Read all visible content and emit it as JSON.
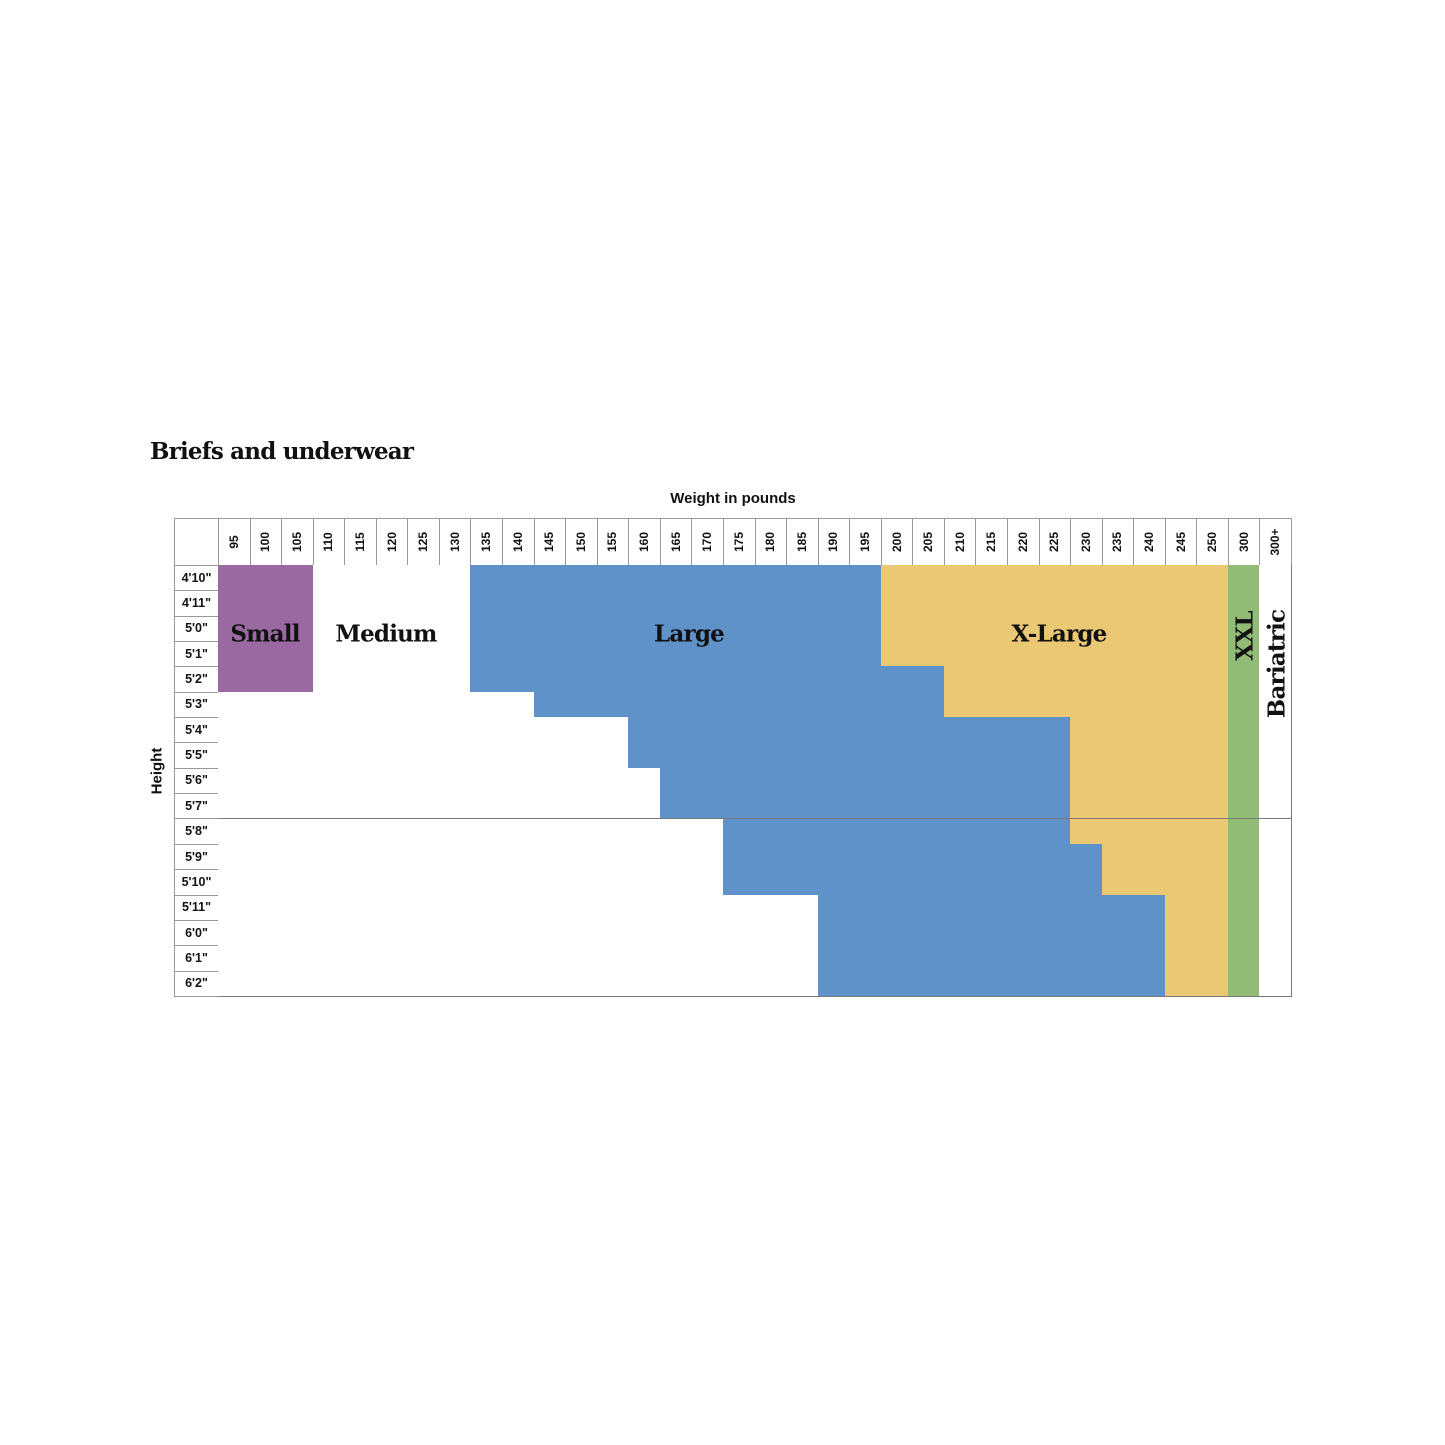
{
  "chart_data": {
    "type": "heatmap",
    "title": "Briefs and underwear",
    "xlabel": "Weight in pounds",
    "ylabel": "Height",
    "x": [
      "95",
      "100",
      "105",
      "110",
      "115",
      "120",
      "125",
      "130",
      "135",
      "140",
      "145",
      "150",
      "155",
      "160",
      "165",
      "170",
      "175",
      "180",
      "185",
      "190",
      "195",
      "200",
      "205",
      "210",
      "215",
      "220",
      "225",
      "230",
      "235",
      "240",
      "245",
      "250",
      "300",
      "300+"
    ],
    "y": [
      "4'10\"",
      "4'11\"",
      "5'0\"",
      "5'1\"",
      "5'2\"",
      "5'3\"",
      "5'4\"",
      "5'5\"",
      "5'6\"",
      "5'7\"",
      "5'8\"",
      "5'9\"",
      "5'10\"",
      "5'11\"",
      "6'0\"",
      "6'1\"",
      "6'2\""
    ],
    "sizes": [
      {
        "name": "Small",
        "color": "#9b69a2"
      },
      {
        "name": "Medium",
        "color": "#ffffff"
      },
      {
        "name": "Large",
        "color": "#5f92c8"
      },
      {
        "name": "X-Large",
        "color": "#ebc873"
      },
      {
        "name": "XXL",
        "color": "#92bb76"
      },
      {
        "name": "Bariatric",
        "color": "#ffffff"
      }
    ],
    "rows": [
      {
        "height": "4'10\"",
        "bands": [
          {
            "size": "Small",
            "from": "95",
            "to": "105"
          },
          {
            "size": "Large",
            "from": "135",
            "to": "195"
          },
          {
            "size": "X-Large",
            "from": "200",
            "to": "250"
          },
          {
            "size": "XXL",
            "from": "300",
            "to": "300"
          }
        ]
      },
      {
        "height": "4'11\"",
        "bands": [
          {
            "size": "Small",
            "from": "95",
            "to": "105"
          },
          {
            "size": "Large",
            "from": "135",
            "to": "195"
          },
          {
            "size": "X-Large",
            "from": "200",
            "to": "250"
          },
          {
            "size": "XXL",
            "from": "300",
            "to": "300"
          }
        ]
      },
      {
        "height": "5'0\"",
        "bands": [
          {
            "size": "Small",
            "from": "95",
            "to": "105"
          },
          {
            "size": "Large",
            "from": "135",
            "to": "195"
          },
          {
            "size": "X-Large",
            "from": "200",
            "to": "250"
          },
          {
            "size": "XXL",
            "from": "300",
            "to": "300"
          }
        ]
      },
      {
        "height": "5'1\"",
        "bands": [
          {
            "size": "Small",
            "from": "95",
            "to": "105"
          },
          {
            "size": "Large",
            "from": "135",
            "to": "195"
          },
          {
            "size": "X-Large",
            "from": "200",
            "to": "250"
          },
          {
            "size": "XXL",
            "from": "300",
            "to": "300"
          }
        ]
      },
      {
        "height": "5'2\"",
        "bands": [
          {
            "size": "Small",
            "from": "95",
            "to": "105"
          },
          {
            "size": "Large",
            "from": "135",
            "to": "205"
          },
          {
            "size": "X-Large",
            "from": "210",
            "to": "250"
          },
          {
            "size": "XXL",
            "from": "300",
            "to": "300"
          }
        ]
      },
      {
        "height": "5'3\"",
        "bands": [
          {
            "size": "Large",
            "from": "145",
            "to": "205"
          },
          {
            "size": "X-Large",
            "from": "210",
            "to": "250"
          },
          {
            "size": "XXL",
            "from": "300",
            "to": "300"
          }
        ]
      },
      {
        "height": "5'4\"",
        "bands": [
          {
            "size": "Large",
            "from": "160",
            "to": "225"
          },
          {
            "size": "X-Large",
            "from": "230",
            "to": "250"
          },
          {
            "size": "XXL",
            "from": "300",
            "to": "300"
          }
        ]
      },
      {
        "height": "5'5\"",
        "bands": [
          {
            "size": "Large",
            "from": "160",
            "to": "225"
          },
          {
            "size": "X-Large",
            "from": "230",
            "to": "250"
          },
          {
            "size": "XXL",
            "from": "300",
            "to": "300"
          }
        ]
      },
      {
        "height": "5'6\"",
        "bands": [
          {
            "size": "Large",
            "from": "165",
            "to": "225"
          },
          {
            "size": "X-Large",
            "from": "230",
            "to": "250"
          },
          {
            "size": "XXL",
            "from": "300",
            "to": "300"
          }
        ]
      },
      {
        "height": "5'7\"",
        "bands": [
          {
            "size": "Large",
            "from": "165",
            "to": "225"
          },
          {
            "size": "X-Large",
            "from": "230",
            "to": "250"
          },
          {
            "size": "XXL",
            "from": "300",
            "to": "300"
          }
        ]
      },
      {
        "height": "5'8\"",
        "bands": [
          {
            "size": "Large",
            "from": "175",
            "to": "225"
          },
          {
            "size": "X-Large",
            "from": "230",
            "to": "250"
          },
          {
            "size": "XXL",
            "from": "300",
            "to": "300"
          }
        ]
      },
      {
        "height": "5'9\"",
        "bands": [
          {
            "size": "Large",
            "from": "175",
            "to": "230"
          },
          {
            "size": "X-Large",
            "from": "235",
            "to": "250"
          },
          {
            "size": "XXL",
            "from": "300",
            "to": "300"
          }
        ]
      },
      {
        "height": "5'10\"",
        "bands": [
          {
            "size": "Large",
            "from": "175",
            "to": "230"
          },
          {
            "size": "X-Large",
            "from": "235",
            "to": "250"
          },
          {
            "size": "XXL",
            "from": "300",
            "to": "300"
          }
        ]
      },
      {
        "height": "5'11\"",
        "bands": [
          {
            "size": "Large",
            "from": "190",
            "to": "240"
          },
          {
            "size": "X-Large",
            "from": "245",
            "to": "250"
          },
          {
            "size": "XXL",
            "from": "300",
            "to": "300"
          }
        ]
      },
      {
        "height": "6'0\"",
        "bands": [
          {
            "size": "Large",
            "from": "190",
            "to": "240"
          },
          {
            "size": "X-Large",
            "from": "245",
            "to": "250"
          },
          {
            "size": "XXL",
            "from": "300",
            "to": "300"
          }
        ]
      },
      {
        "height": "6'1\"",
        "bands": [
          {
            "size": "Large",
            "from": "190",
            "to": "240"
          },
          {
            "size": "X-Large",
            "from": "245",
            "to": "250"
          },
          {
            "size": "XXL",
            "from": "300",
            "to": "300"
          }
        ]
      },
      {
        "height": "6'2\"",
        "bands": [
          {
            "size": "Large",
            "from": "190",
            "to": "240"
          },
          {
            "size": "X-Large",
            "from": "245",
            "to": "250"
          },
          {
            "size": "XXL",
            "from": "300",
            "to": "300"
          }
        ]
      }
    ],
    "labels": {
      "small": "Small",
      "medium": "Medium",
      "large": "Large",
      "xlarge": "X-Large",
      "xxl": "XXL",
      "bariatric": "Bariatric"
    },
    "grid": true
  }
}
